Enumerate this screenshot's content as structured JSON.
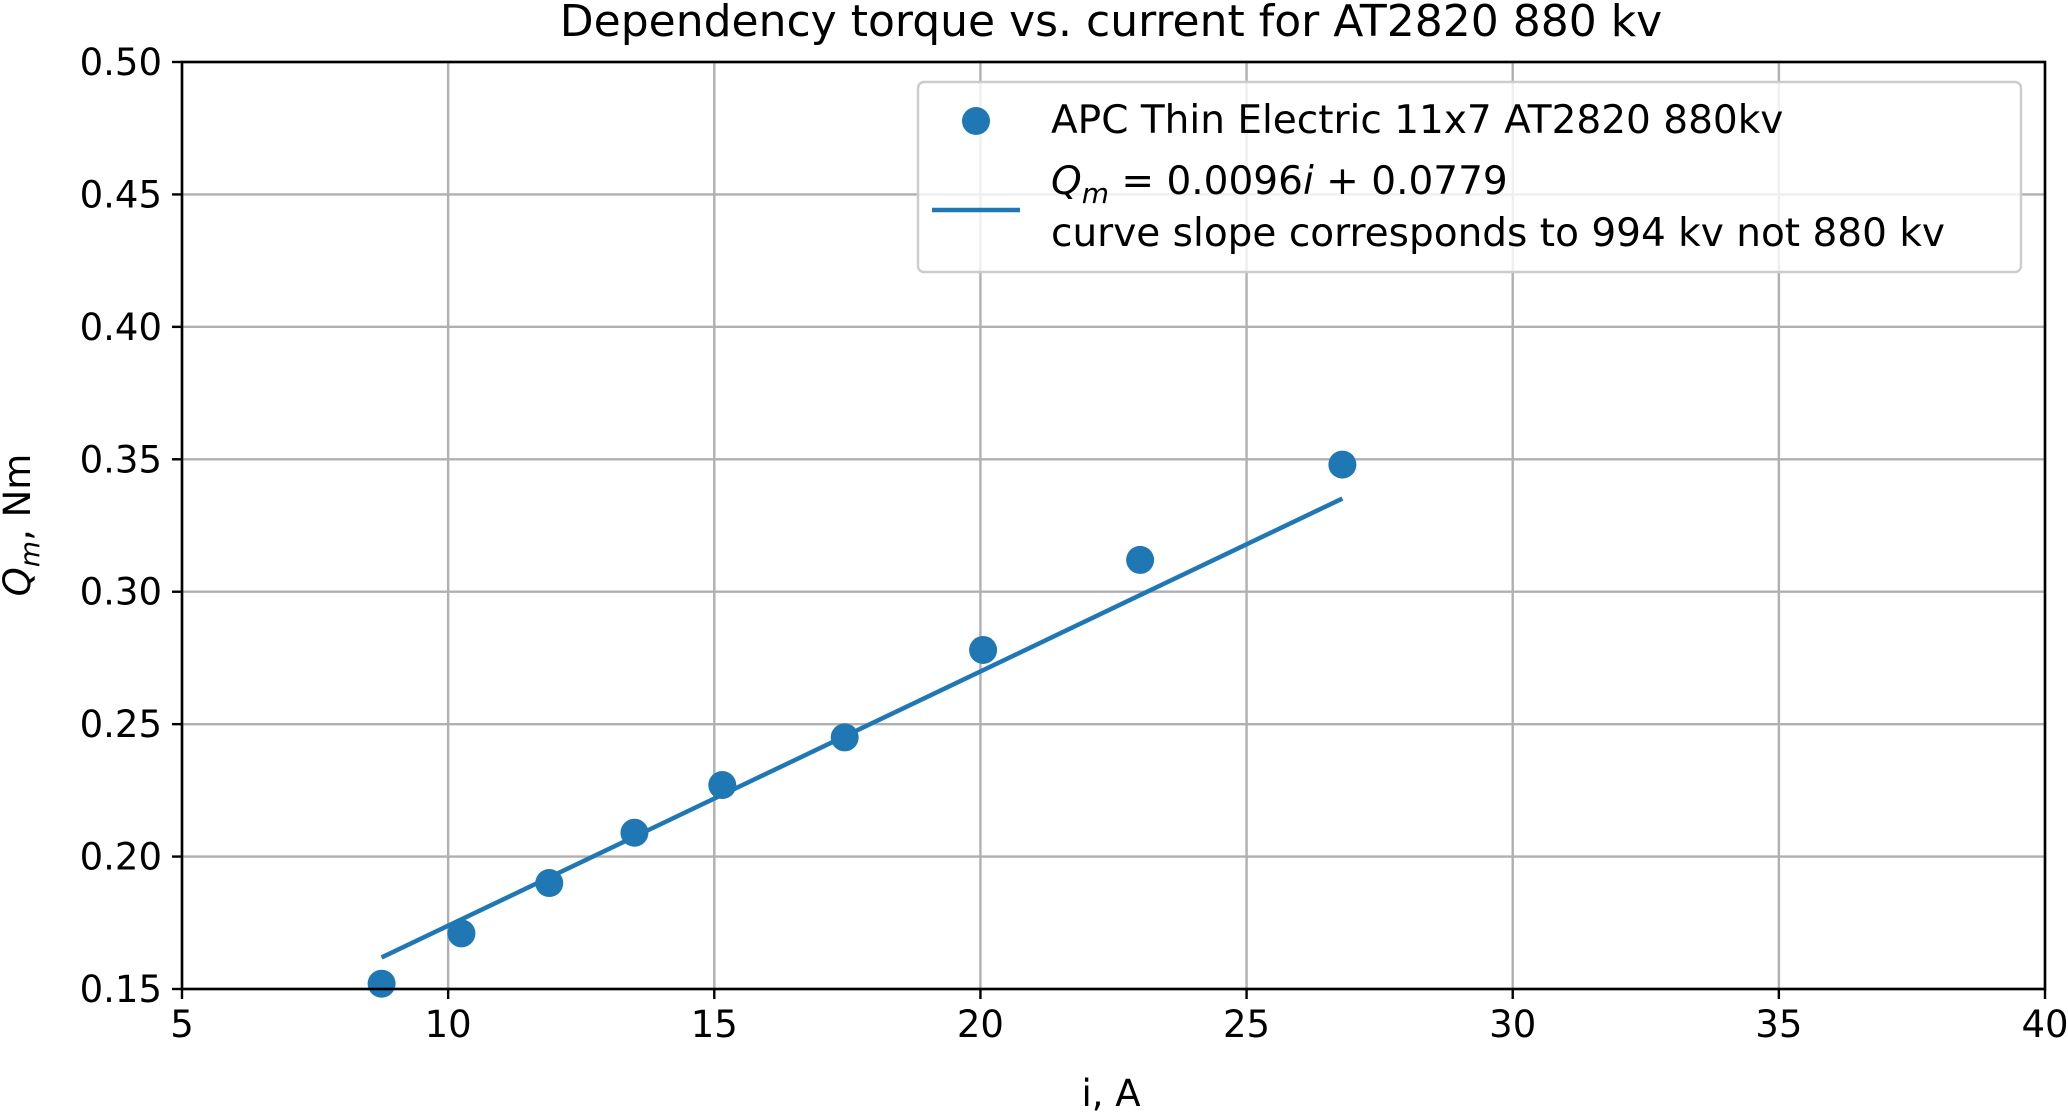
{
  "chart_data": {
    "type": "scatter",
    "title": "Dependency torque vs. current for AT2820 880 kv",
    "xlabel": "i, A",
    "ylabel": {
      "symbol": "Q",
      "subscript": "m",
      "suffix": ", Nm"
    },
    "xlim": [
      5,
      40
    ],
    "ylim": [
      0.15,
      0.5
    ],
    "xticks": [
      "5",
      "10",
      "15",
      "20",
      "25",
      "30",
      "35",
      "40"
    ],
    "yticks": [
      "0.15",
      "0.20",
      "0.25",
      "0.30",
      "0.35",
      "0.40",
      "0.45",
      "0.50"
    ],
    "grid": true,
    "legend_position": "top-right",
    "color": "#1f77b4",
    "series": [
      {
        "name": "APC Thin Electric 11x7 AT2820 880kv",
        "kind": "scatter",
        "x": [
          8.75,
          10.25,
          11.9,
          13.5,
          15.15,
          17.45,
          20.05,
          23.0,
          26.8
        ],
        "y": [
          0.152,
          0.171,
          0.19,
          0.209,
          0.227,
          0.245,
          0.278,
          0.312,
          0.348
        ]
      },
      {
        "name": "curve slope corresponds to 994 kv not 880 kv",
        "kind": "line",
        "equation": {
          "lhs_symbol": "Q",
          "lhs_subscript": "m",
          "slope_text": "0.0096",
          "variable": "i",
          "intercept_text": "0.0779"
        },
        "slope": 0.0096,
        "intercept": 0.0779,
        "x_range": [
          8.75,
          26.8
        ]
      }
    ]
  }
}
